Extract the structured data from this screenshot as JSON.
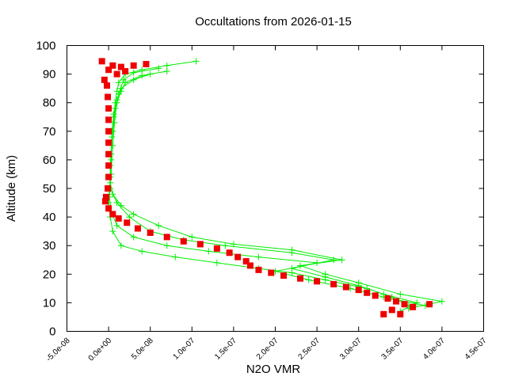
{
  "chart_data": {
    "type": "scatter",
    "title": "Occultations from 2026-01-15",
    "xlabel": "N2O VMR",
    "ylabel": "Altitude (km)",
    "xlim": [
      -5e-08,
      4.5e-07
    ],
    "ylim": [
      0,
      100
    ],
    "xticks": [
      "-5.0e-08",
      "0.0e+00",
      "5.0e-08",
      "1.0e-07",
      "1.5e-07",
      "2.0e-07",
      "2.5e-07",
      "3.0e-07",
      "3.5e-07",
      "4.0e-07",
      "4.5e-07"
    ],
    "xtick_values": [
      -5e-08,
      0,
      5e-08,
      1e-07,
      1.5e-07,
      2e-07,
      2.5e-07,
      3e-07,
      3.5e-07,
      4e-07,
      4.5e-07
    ],
    "yticks": [
      "0",
      "10",
      "20",
      "30",
      "40",
      "50",
      "60",
      "70",
      "80",
      "90",
      "100"
    ],
    "ytick_values": [
      0,
      10,
      20,
      30,
      40,
      50,
      60,
      70,
      80,
      90,
      100
    ],
    "grid": false,
    "colors": {
      "green_series": "#00ee00",
      "red_series": "#ee0000"
    },
    "series": [
      {
        "marker": "plus-line",
        "color": "#00ee00",
        "points": [
          [
            1.05e-07,
            94.5
          ],
          [
            7e-08,
            93
          ],
          [
            4e-08,
            91.5
          ],
          [
            2e-08,
            90
          ],
          [
            1.2e-08,
            87
          ],
          [
            1e-08,
            84
          ],
          [
            8e-09,
            80
          ],
          [
            6e-09,
            75
          ],
          [
            4e-09,
            70
          ],
          [
            3e-09,
            60
          ],
          [
            2e-09,
            52
          ],
          [
            5e-09,
            48
          ],
          [
            1.5e-08,
            44
          ],
          [
            3e-08,
            41
          ],
          [
            6e-08,
            37
          ],
          [
            1e-07,
            33
          ],
          [
            1.5e-07,
            30.5
          ],
          [
            2.2e-07,
            28.5
          ],
          [
            2.8e-07,
            25
          ],
          [
            2.3e-07,
            23
          ],
          [
            2.6e-07,
            20
          ],
          [
            3e-07,
            17
          ],
          [
            3.5e-07,
            13
          ],
          [
            4e-07,
            10.5
          ],
          [
            3.6e-07,
            8
          ]
        ]
      },
      {
        "marker": "plus-line",
        "color": "#00ee00",
        "points": [
          [
            7e-08,
            91
          ],
          [
            4e-08,
            89.5
          ],
          [
            2e-08,
            87
          ],
          [
            1.5e-08,
            84
          ],
          [
            1e-08,
            80
          ],
          [
            7e-09,
            73
          ],
          [
            5e-09,
            65
          ],
          [
            3e-09,
            55
          ],
          [
            1e-09,
            47
          ],
          [
            3e-09,
            42
          ],
          [
            1e-08,
            37
          ],
          [
            3e-08,
            33
          ],
          [
            7e-08,
            30
          ],
          [
            1.2e-07,
            28
          ],
          [
            1.8e-07,
            26
          ],
          [
            2.5e-07,
            24
          ],
          [
            2.2e-07,
            22
          ],
          [
            2.6e-07,
            19
          ],
          [
            3e-07,
            16
          ],
          [
            3.3e-07,
            13
          ],
          [
            3.7e-07,
            10
          ],
          [
            3.5e-07,
            7
          ]
        ]
      },
      {
        "marker": "plus-line",
        "color": "#00ee00",
        "points": [
          [
            5e-08,
            90
          ],
          [
            3e-08,
            88
          ],
          [
            1.5e-08,
            85
          ],
          [
            1e-08,
            81
          ],
          [
            6e-09,
            76
          ],
          [
            4e-09,
            68
          ],
          [
            2e-09,
            58
          ],
          [
            2e-09,
            50
          ],
          [
            1e-08,
            45
          ],
          [
            2.5e-08,
            40
          ],
          [
            5e-08,
            35
          ],
          [
            9e-08,
            32
          ],
          [
            1.4e-07,
            30
          ],
          [
            2.2e-07,
            27.5
          ],
          [
            2.7e-07,
            25
          ],
          [
            2e-07,
            21
          ],
          [
            2.4e-07,
            18
          ],
          [
            2.9e-07,
            15
          ],
          [
            3.3e-07,
            12
          ],
          [
            3.8e-07,
            9
          ]
        ]
      },
      {
        "marker": "plus-line",
        "color": "#00ee00",
        "points": [
          [
            6e-08,
            92
          ],
          [
            3e-08,
            90.5
          ],
          [
            1.8e-08,
            88
          ],
          [
            1.2e-08,
            83
          ],
          [
            8e-09,
            78
          ],
          [
            5e-09,
            70
          ],
          [
            3e-09,
            62
          ],
          [
            2e-09,
            54
          ],
          [
            0,
            45
          ],
          [
            2e-09,
            40
          ],
          [
            5e-09,
            35
          ],
          [
            1.5e-08,
            30
          ],
          [
            4e-08,
            28
          ],
          [
            8e-08,
            26
          ],
          [
            1.3e-07,
            24
          ],
          [
            1.8e-07,
            22
          ],
          [
            2.2e-07,
            20.5
          ],
          [
            2.6e-07,
            18
          ],
          [
            3.1e-07,
            15
          ],
          [
            3.4e-07,
            12
          ],
          [
            3.6e-07,
            9
          ]
        ]
      },
      {
        "marker": "square",
        "color": "#ee0000",
        "points": [
          [
            -8e-09,
            94.5
          ],
          [
            5e-09,
            93
          ],
          [
            1.5e-08,
            92.5
          ],
          [
            3e-08,
            93
          ],
          [
            4.5e-08,
            93.5
          ],
          [
            0,
            91.5
          ],
          [
            1e-08,
            90
          ],
          [
            2e-08,
            91
          ],
          [
            -5e-09,
            88
          ],
          [
            -2e-09,
            86
          ],
          [
            -1e-09,
            82
          ],
          [
            0,
            78
          ],
          [
            0,
            74
          ],
          [
            0,
            70
          ],
          [
            0,
            66
          ],
          [
            0,
            62
          ],
          [
            0,
            58
          ],
          [
            0,
            54
          ],
          [
            -1e-09,
            50
          ],
          [
            -3e-09,
            47
          ],
          [
            -4e-09,
            45.5
          ],
          [
            0,
            43
          ],
          [
            5e-09,
            41
          ],
          [
            1.2e-08,
            39.5
          ],
          [
            2.2e-08,
            38
          ],
          [
            3.5e-08,
            36
          ],
          [
            5e-08,
            34.5
          ],
          [
            7e-08,
            33
          ],
          [
            9e-08,
            31.5
          ],
          [
            1.1e-07,
            30.5
          ],
          [
            1.3e-07,
            29
          ],
          [
            1.45e-07,
            27.5
          ],
          [
            1.55e-07,
            26
          ],
          [
            1.65e-07,
            24.5
          ],
          [
            1.7e-07,
            23
          ],
          [
            1.8e-07,
            21.5
          ],
          [
            1.95e-07,
            20.5
          ],
          [
            2.1e-07,
            19.5
          ],
          [
            2.3e-07,
            18.5
          ],
          [
            2.5e-07,
            17.5
          ],
          [
            2.7e-07,
            16.5
          ],
          [
            2.85e-07,
            15.5
          ],
          [
            3e-07,
            14.5
          ],
          [
            3.1e-07,
            13.5
          ],
          [
            3.2e-07,
            12.5
          ],
          [
            3.35e-07,
            11.5
          ],
          [
            3.45e-07,
            10.5
          ],
          [
            3.55e-07,
            9.5
          ],
          [
            3.65e-07,
            8.5
          ],
          [
            3.4e-07,
            7.5
          ],
          [
            3.3e-07,
            6
          ],
          [
            3.5e-07,
            6
          ],
          [
            3.85e-07,
            9.5
          ]
        ]
      }
    ]
  }
}
